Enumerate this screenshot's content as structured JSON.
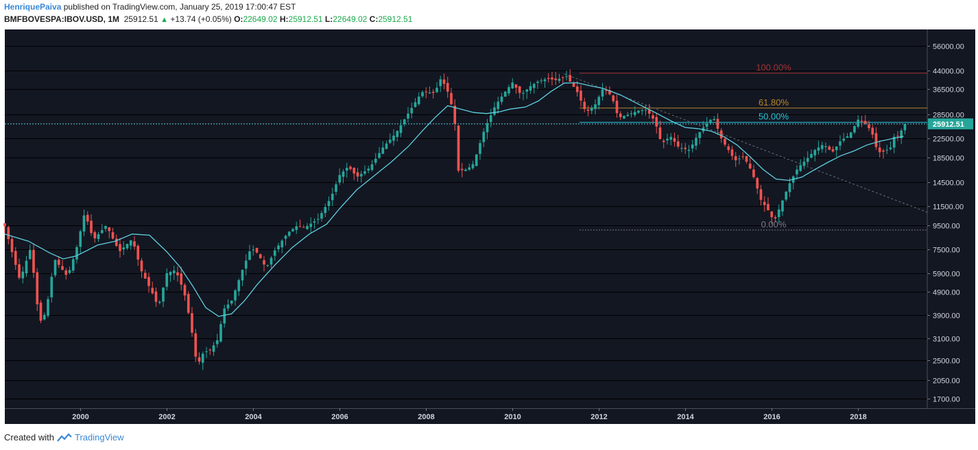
{
  "header": {
    "author": "HenriquePaiva",
    "published_text": "published on TradingView.com, January 25, 2019 17:00:47 EST",
    "symbol": "BMFBOVESPA:IBOV.USD, 1M",
    "last_price": "25912.51",
    "change": "+13.74 (+0.05%)",
    "open_label": "O:",
    "open": "22649.02",
    "high_label": "H:",
    "high": "25912.51",
    "low_label": "L:",
    "low": "22649.02",
    "close_label": "C:",
    "close": "25912.51"
  },
  "footer": {
    "created_with": "Created with",
    "brand": "TradingView"
  },
  "colors": {
    "background": "#131722",
    "up": "#26a69a",
    "down": "#ef5350",
    "ma": "#5fd0e0",
    "fib_100": "#a33232",
    "fib_618": "#b8862b",
    "fib_50": "#26c6da",
    "fib_0": "#787b86",
    "price_tag": "#26a69a"
  },
  "chart_data": {
    "type": "candlestick",
    "title": "BMFBOVESPA:IBOV.USD, 1M",
    "y_scale": "log",
    "y_ticks": [
      56000,
      44000,
      36500,
      28500,
      22500,
      18500,
      14500,
      11500,
      9500,
      7500,
      5900,
      4900,
      3900,
      3100,
      2500,
      2050,
      1700
    ],
    "y_tick_labels": [
      "56000.00",
      "44000.00",
      "36500.00",
      "28500.00",
      "22500.00",
      "18500.00",
      "14500.00",
      "11500.00",
      "9500.00",
      "7500.00",
      "5900.00",
      "4900.00",
      "3900.00",
      "3100.00",
      "2500.00",
      "2050.00",
      "1700.00"
    ],
    "ylim": [
      1550,
      66000
    ],
    "x_range": [
      1998.25,
      2019.6
    ],
    "x_ticks": [
      2000,
      2002,
      2004,
      2006,
      2008,
      2010,
      2012,
      2014,
      2016,
      2018
    ],
    "x_tick_labels": [
      "2000",
      "2002",
      "2004",
      "2006",
      "2008",
      "2010",
      "2012",
      "2014",
      "2016",
      "2018"
    ],
    "price_line": {
      "value": 25912.51,
      "label": "25912.51"
    },
    "fib_levels": [
      {
        "label": "100.00%",
        "value": 42800,
        "x_start": 2011.55,
        "color_key": "fib_100"
      },
      {
        "label": "61.80%",
        "value": 30300,
        "x_start": 2011.55,
        "color_key": "fib_618"
      },
      {
        "label": "50.00%",
        "value": 26300,
        "x_start": 2011.55,
        "color_key": "fib_50"
      },
      {
        "label": "0.00%",
        "value": 9050,
        "x_start": 2011.55,
        "color_key": "fib_0"
      }
    ],
    "trendline": {
      "start": [
        2011.2,
        42500
      ],
      "end": [
        2019.6,
        10800
      ]
    },
    "price_path": [
      [
        1998.25,
        9400
      ],
      [
        1998.6,
        5500
      ],
      [
        1998.85,
        7600
      ],
      [
        1999.05,
        3600
      ],
      [
        1999.2,
        4000
      ],
      [
        1999.4,
        6800
      ],
      [
        1999.7,
        5700
      ],
      [
        1999.9,
        7400
      ],
      [
        2000.1,
        10800
      ],
      [
        2000.3,
        8200
      ],
      [
        2000.6,
        9500
      ],
      [
        2000.9,
        7300
      ],
      [
        2001.2,
        8300
      ],
      [
        2001.4,
        6100
      ],
      [
        2001.7,
        4700
      ],
      [
        2001.8,
        4200
      ],
      [
        2002.0,
        5900
      ],
      [
        2002.2,
        6100
      ],
      [
        2002.4,
        4900
      ],
      [
        2002.55,
        3600
      ],
      [
        2002.7,
        2350
      ],
      [
        2002.85,
        2700
      ],
      [
        2003.0,
        2750
      ],
      [
        2003.2,
        3100
      ],
      [
        2003.3,
        4100
      ],
      [
        2003.5,
        4500
      ],
      [
        2003.75,
        6100
      ],
      [
        2003.95,
        7600
      ],
      [
        2004.1,
        7200
      ],
      [
        2004.3,
        6200
      ],
      [
        2004.5,
        7400
      ],
      [
        2004.8,
        8800
      ],
      [
        2005.0,
        9400
      ],
      [
        2005.2,
        9300
      ],
      [
        2005.5,
        10100
      ],
      [
        2005.8,
        12500
      ],
      [
        2006.0,
        15600
      ],
      [
        2006.2,
        17000
      ],
      [
        2006.4,
        15300
      ],
      [
        2006.7,
        16800
      ],
      [
        2007.0,
        20500
      ],
      [
        2007.3,
        23600
      ],
      [
        2007.6,
        29000
      ],
      [
        2007.9,
        35500
      ],
      [
        2008.2,
        35200
      ],
      [
        2008.35,
        41000
      ],
      [
        2008.55,
        34000
      ],
      [
        2008.7,
        24000
      ],
      [
        2008.75,
        16300
      ],
      [
        2008.95,
        16500
      ],
      [
        2009.1,
        17500
      ],
      [
        2009.35,
        24500
      ],
      [
        2009.6,
        31000
      ],
      [
        2009.8,
        35000
      ],
      [
        2010.0,
        39000
      ],
      [
        2010.2,
        34500
      ],
      [
        2010.4,
        37500
      ],
      [
        2010.6,
        39500
      ],
      [
        2010.8,
        40500
      ],
      [
        2011.0,
        40000
      ],
      [
        2011.25,
        41500
      ],
      [
        2011.5,
        35500
      ],
      [
        2011.7,
        29000
      ],
      [
        2011.9,
        31000
      ],
      [
        2012.1,
        37000
      ],
      [
        2012.3,
        34000
      ],
      [
        2012.45,
        27500
      ],
      [
        2012.7,
        28500
      ],
      [
        2012.9,
        29500
      ],
      [
        2013.1,
        29800
      ],
      [
        2013.3,
        26500
      ],
      [
        2013.45,
        21200
      ],
      [
        2013.65,
        23000
      ],
      [
        2013.85,
        20500
      ],
      [
        2014.1,
        20000
      ],
      [
        2014.3,
        23500
      ],
      [
        2014.5,
        26000
      ],
      [
        2014.65,
        27700
      ],
      [
        2014.85,
        22000
      ],
      [
        2015.0,
        20000
      ],
      [
        2015.15,
        18000
      ],
      [
        2015.35,
        18800
      ],
      [
        2015.55,
        16000
      ],
      [
        2015.75,
        12200
      ],
      [
        2015.95,
        10800
      ],
      [
        2016.05,
        9800
      ],
      [
        2016.2,
        11500
      ],
      [
        2016.4,
        14200
      ],
      [
        2016.6,
        16700
      ],
      [
        2016.8,
        18200
      ],
      [
        2017.0,
        20000
      ],
      [
        2017.2,
        21200
      ],
      [
        2017.4,
        19500
      ],
      [
        2017.6,
        22000
      ],
      [
        2017.8,
        23200
      ],
      [
        2018.0,
        27000
      ],
      [
        2018.2,
        25800
      ],
      [
        2018.35,
        23000
      ],
      [
        2018.45,
        19500
      ],
      [
        2018.6,
        19700
      ],
      [
        2018.75,
        20500
      ],
      [
        2018.85,
        23300
      ],
      [
        2018.95,
        22700
      ],
      [
        2019.05,
        25912
      ]
    ],
    "moving_average": [
      [
        1998.25,
        8700
      ],
      [
        1998.8,
        8100
      ],
      [
        1999.3,
        7200
      ],
      [
        1999.6,
        6800
      ],
      [
        1999.9,
        7000
      ],
      [
        2000.4,
        7800
      ],
      [
        2000.8,
        8100
      ],
      [
        2001.2,
        8700
      ],
      [
        2001.6,
        8600
      ],
      [
        2002.0,
        7300
      ],
      [
        2002.3,
        6300
      ],
      [
        2002.6,
        5200
      ],
      [
        2002.9,
        4200
      ],
      [
        2003.2,
        3850
      ],
      [
        2003.5,
        3950
      ],
      [
        2003.8,
        4500
      ],
      [
        2004.1,
        5300
      ],
      [
        2004.5,
        6400
      ],
      [
        2004.9,
        7600
      ],
      [
        2005.3,
        8700
      ],
      [
        2005.7,
        9600
      ],
      [
        2006.0,
        11200
      ],
      [
        2006.4,
        13500
      ],
      [
        2006.8,
        15500
      ],
      [
        2007.2,
        17800
      ],
      [
        2007.6,
        20800
      ],
      [
        2007.9,
        24000
      ],
      [
        2008.2,
        27500
      ],
      [
        2008.5,
        31000
      ],
      [
        2008.8,
        30000
      ],
      [
        2009.1,
        29000
      ],
      [
        2009.4,
        28700
      ],
      [
        2009.7,
        29200
      ],
      [
        2009.95,
        30000
      ],
      [
        2010.3,
        30600
      ],
      [
        2010.6,
        32500
      ],
      [
        2010.9,
        35800
      ],
      [
        2011.2,
        38800
      ],
      [
        2011.5,
        38900
      ],
      [
        2011.8,
        37800
      ],
      [
        2012.1,
        36800
      ],
      [
        2012.5,
        34500
      ],
      [
        2012.9,
        31600
      ],
      [
        2013.3,
        29000
      ],
      [
        2013.7,
        26500
      ],
      [
        2014.0,
        25000
      ],
      [
        2014.3,
        24700
      ],
      [
        2014.6,
        24100
      ],
      [
        2014.9,
        22800
      ],
      [
        2015.2,
        21000
      ],
      [
        2015.5,
        18700
      ],
      [
        2015.8,
        16500
      ],
      [
        2016.1,
        15000
      ],
      [
        2016.4,
        14800
      ],
      [
        2016.7,
        15300
      ],
      [
        2017.0,
        16500
      ],
      [
        2017.3,
        17700
      ],
      [
        2017.6,
        18900
      ],
      [
        2017.9,
        19800
      ],
      [
        2018.2,
        21000
      ],
      [
        2018.5,
        21800
      ],
      [
        2018.8,
        22400
      ],
      [
        2019.05,
        22900
      ]
    ]
  }
}
